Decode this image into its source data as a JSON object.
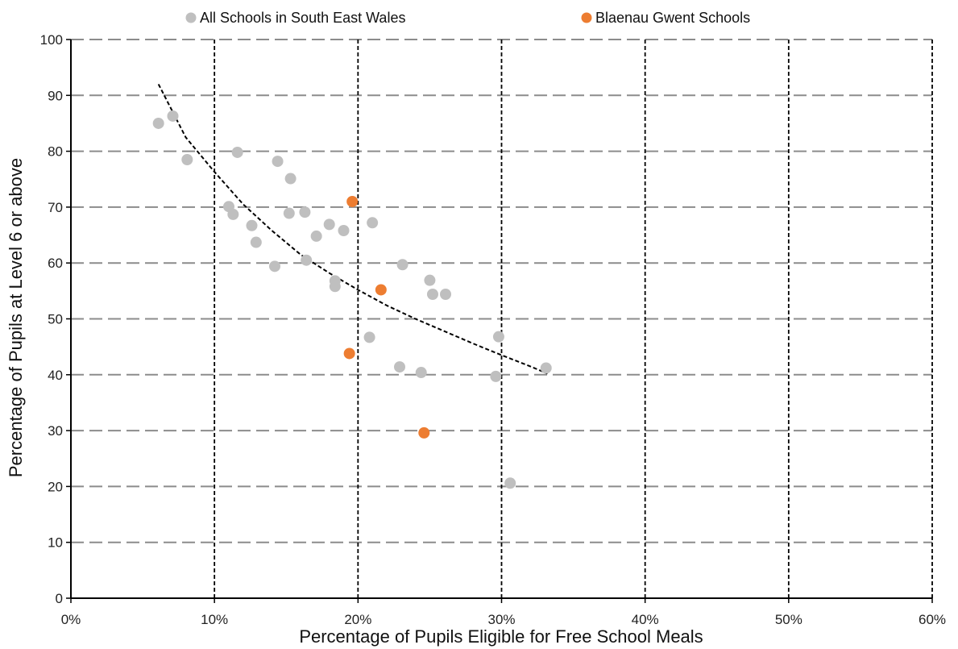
{
  "chart_data": {
    "type": "scatter",
    "xlabel": "Percentage of Pupils Eligible for Free School Meals",
    "ylabel": "Percentage of Pupils at Level 6 or above",
    "xlim": [
      0,
      60
    ],
    "ylim": [
      0,
      100
    ],
    "x_ticks": [
      0,
      10,
      20,
      30,
      40,
      50,
      60
    ],
    "x_tick_labels": [
      "0%",
      "10%",
      "20%",
      "30%",
      "40%",
      "50%",
      "60%"
    ],
    "y_ticks": [
      0,
      10,
      20,
      30,
      40,
      50,
      60,
      70,
      80,
      90,
      100
    ],
    "y_tick_labels": [
      "0",
      "10",
      "20",
      "30",
      "40",
      "50",
      "60",
      "70",
      "80",
      "90",
      "100"
    ],
    "grid": "dashed gridlines at every tick",
    "legend_position": "top",
    "series": [
      {
        "name": "All Schools in South East Wales",
        "color": "#bfbfbf",
        "points": [
          [
            6.1,
            85.0
          ],
          [
            7.1,
            86.3
          ],
          [
            8.1,
            78.5
          ],
          [
            11.0,
            70.1
          ],
          [
            11.3,
            68.7
          ],
          [
            11.6,
            79.8
          ],
          [
            12.6,
            66.7
          ],
          [
            12.9,
            63.7
          ],
          [
            14.2,
            59.4
          ],
          [
            14.4,
            78.2
          ],
          [
            15.2,
            68.9
          ],
          [
            15.3,
            75.1
          ],
          [
            16.3,
            69.1
          ],
          [
            16.4,
            60.5
          ],
          [
            17.1,
            64.8
          ],
          [
            18.0,
            66.9
          ],
          [
            18.4,
            56.8
          ],
          [
            18.4,
            55.8
          ],
          [
            19.0,
            65.8
          ],
          [
            20.8,
            46.7
          ],
          [
            21.0,
            67.2
          ],
          [
            22.9,
            41.4
          ],
          [
            23.1,
            59.7
          ],
          [
            24.4,
            40.4
          ],
          [
            25.0,
            56.9
          ],
          [
            25.2,
            54.4
          ],
          [
            26.1,
            54.4
          ],
          [
            29.6,
            39.7
          ],
          [
            29.8,
            46.8
          ],
          [
            30.6,
            20.6
          ],
          [
            33.1,
            41.2
          ]
        ]
      },
      {
        "name": "Blaenau Gwent Schools",
        "color": "#ed7d31",
        "points": [
          [
            19.4,
            43.8
          ],
          [
            19.6,
            71.0
          ],
          [
            21.6,
            55.2
          ],
          [
            24.6,
            29.6
          ]
        ]
      }
    ],
    "trendline": {
      "type": "power",
      "style": "dashed",
      "color": "#000000",
      "points": [
        [
          6.1,
          92.0
        ],
        [
          8.0,
          82.5
        ],
        [
          10.0,
          76.3
        ],
        [
          12.0,
          70.5
        ],
        [
          14.0,
          65.8
        ],
        [
          16.0,
          61.5
        ],
        [
          18.0,
          58.2
        ],
        [
          20.0,
          55.2
        ],
        [
          22.0,
          52.4
        ],
        [
          24.0,
          50.0
        ],
        [
          26.0,
          47.8
        ],
        [
          28.0,
          45.6
        ],
        [
          30.0,
          43.5
        ],
        [
          32.0,
          41.5
        ],
        [
          33.2,
          40.2
        ]
      ]
    }
  }
}
